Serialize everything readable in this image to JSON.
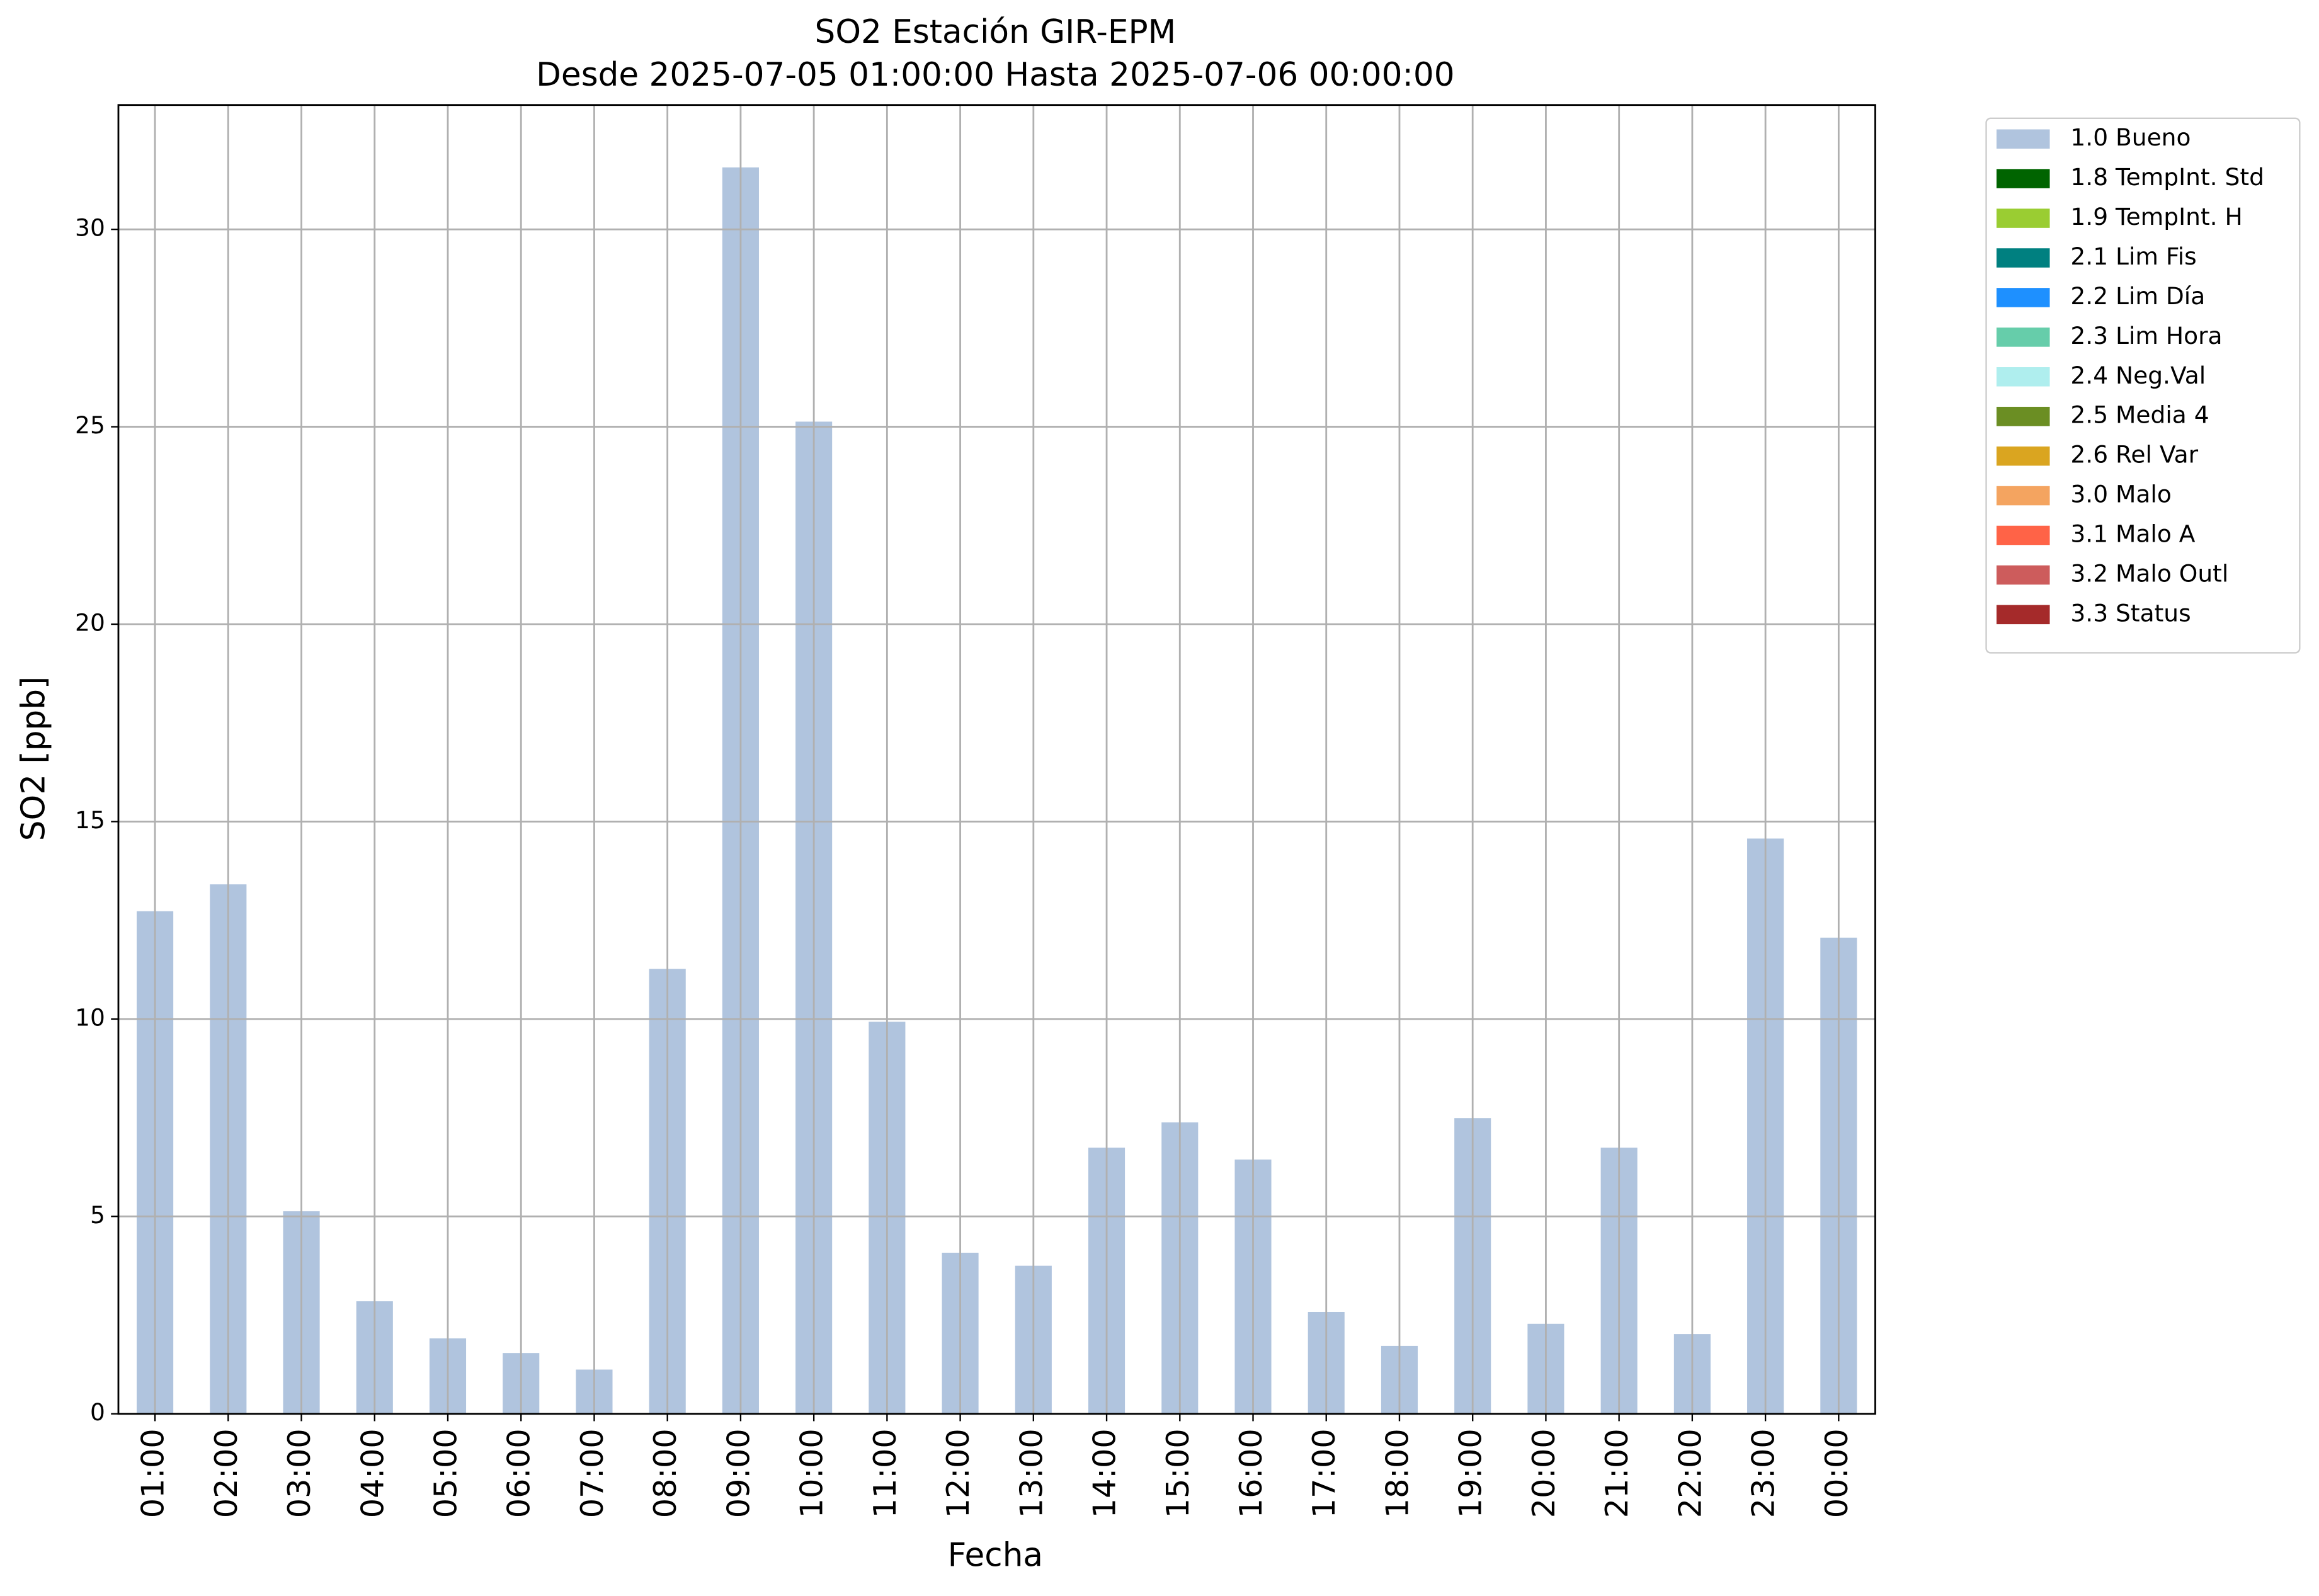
{
  "chart_data": {
    "type": "bar",
    "title": "SO2 Estación GIR-EPM",
    "subtitle": "Desde 2025-07-05 01:00:00 Hasta 2025-07-06 00:00:00",
    "x_label": "Fecha",
    "y_label": "SO2 [ppb]",
    "categories": [
      "01:00",
      "02:00",
      "03:00",
      "04:00",
      "05:00",
      "06:00",
      "07:00",
      "08:00",
      "09:00",
      "10:00",
      "11:00",
      "12:00",
      "13:00",
      "14:00",
      "15:00",
      "16:00",
      "17:00",
      "18:00",
      "19:00",
      "20:00",
      "21:00",
      "22:00",
      "23:00",
      "00:00"
    ],
    "series": [
      {
        "name": "1.0 Bueno",
        "color": "#b0c4de",
        "values": [
          12.73,
          13.41,
          5.13,
          2.85,
          1.91,
          1.54,
          1.12,
          11.27,
          31.57,
          25.13,
          9.93,
          4.08,
          3.75,
          6.74,
          7.38,
          6.44,
          2.58,
          1.72,
          7.49,
          2.28,
          6.74,
          2.02,
          14.57,
          12.06
        ]
      },
      {
        "name": "1.8 TempInt. Std",
        "color": "#006400",
        "values": [
          null,
          null,
          null,
          null,
          null,
          null,
          null,
          null,
          null,
          null,
          null,
          null,
          null,
          null,
          null,
          null,
          null,
          null,
          null,
          null,
          null,
          null,
          null,
          null
        ]
      },
      {
        "name": "1.9 TempInt. H",
        "color": "#9acd32",
        "values": [
          null,
          null,
          null,
          null,
          null,
          null,
          null,
          null,
          null,
          null,
          null,
          null,
          null,
          null,
          null,
          null,
          null,
          null,
          null,
          null,
          null,
          null,
          null,
          null
        ]
      },
      {
        "name": "2.1 Lim Fis",
        "color": "#008080",
        "values": [
          null,
          null,
          null,
          null,
          null,
          null,
          null,
          null,
          null,
          null,
          null,
          null,
          null,
          null,
          null,
          null,
          null,
          null,
          null,
          null,
          null,
          null,
          null,
          null
        ]
      },
      {
        "name": "2.2 Lim Día",
        "color": "#1e90ff",
        "values": [
          null,
          null,
          null,
          null,
          null,
          null,
          null,
          null,
          null,
          null,
          null,
          null,
          null,
          null,
          null,
          null,
          null,
          null,
          null,
          null,
          null,
          null,
          null,
          null
        ]
      },
      {
        "name": "2.3 Lim Hora",
        "color": "#66cdaa",
        "values": [
          null,
          null,
          null,
          null,
          null,
          null,
          null,
          null,
          null,
          null,
          null,
          null,
          null,
          null,
          null,
          null,
          null,
          null,
          null,
          null,
          null,
          null,
          null,
          null
        ]
      },
      {
        "name": "2.4 Neg.Val",
        "color": "#afeeee",
        "values": [
          null,
          null,
          null,
          null,
          null,
          null,
          null,
          null,
          null,
          null,
          null,
          null,
          null,
          null,
          null,
          null,
          null,
          null,
          null,
          null,
          null,
          null,
          null,
          null
        ]
      },
      {
        "name": "2.5 Media 4",
        "color": "#6b8e23",
        "values": [
          null,
          null,
          null,
          null,
          null,
          null,
          null,
          null,
          null,
          null,
          null,
          null,
          null,
          null,
          null,
          null,
          null,
          null,
          null,
          null,
          null,
          null,
          null,
          null
        ]
      },
      {
        "name": "2.6 Rel Var",
        "color": "#daa520",
        "values": [
          null,
          null,
          null,
          null,
          null,
          null,
          null,
          null,
          null,
          null,
          null,
          null,
          null,
          null,
          null,
          null,
          null,
          null,
          null,
          null,
          null,
          null,
          null,
          null
        ]
      },
      {
        "name": "3.0 Malo",
        "color": "#f4a460",
        "values": [
          null,
          null,
          null,
          null,
          null,
          null,
          null,
          null,
          null,
          null,
          null,
          null,
          null,
          null,
          null,
          null,
          null,
          null,
          null,
          null,
          null,
          null,
          null,
          null
        ]
      },
      {
        "name": "3.1 Malo A",
        "color": "#ff6347",
        "values": [
          null,
          null,
          null,
          null,
          null,
          null,
          null,
          null,
          null,
          null,
          null,
          null,
          null,
          null,
          null,
          null,
          null,
          null,
          null,
          null,
          null,
          null,
          null,
          null
        ]
      },
      {
        "name": "3.2 Malo Outl",
        "color": "#cd5c5c",
        "values": [
          null,
          null,
          null,
          null,
          null,
          null,
          null,
          null,
          null,
          null,
          null,
          null,
          null,
          null,
          null,
          null,
          null,
          null,
          null,
          null,
          null,
          null,
          null,
          null
        ]
      },
      {
        "name": "3.3 Status",
        "color": "#a52a2a",
        "values": [
          null,
          null,
          null,
          null,
          null,
          null,
          null,
          null,
          null,
          null,
          null,
          null,
          null,
          null,
          null,
          null,
          null,
          null,
          null,
          null,
          null,
          null,
          null,
          null
        ]
      }
    ],
    "ylim": [
      0,
      33.15
    ],
    "yticks": [
      0,
      5,
      10,
      15,
      20,
      25,
      30
    ],
    "grid": true,
    "legend": "outside upper right"
  }
}
